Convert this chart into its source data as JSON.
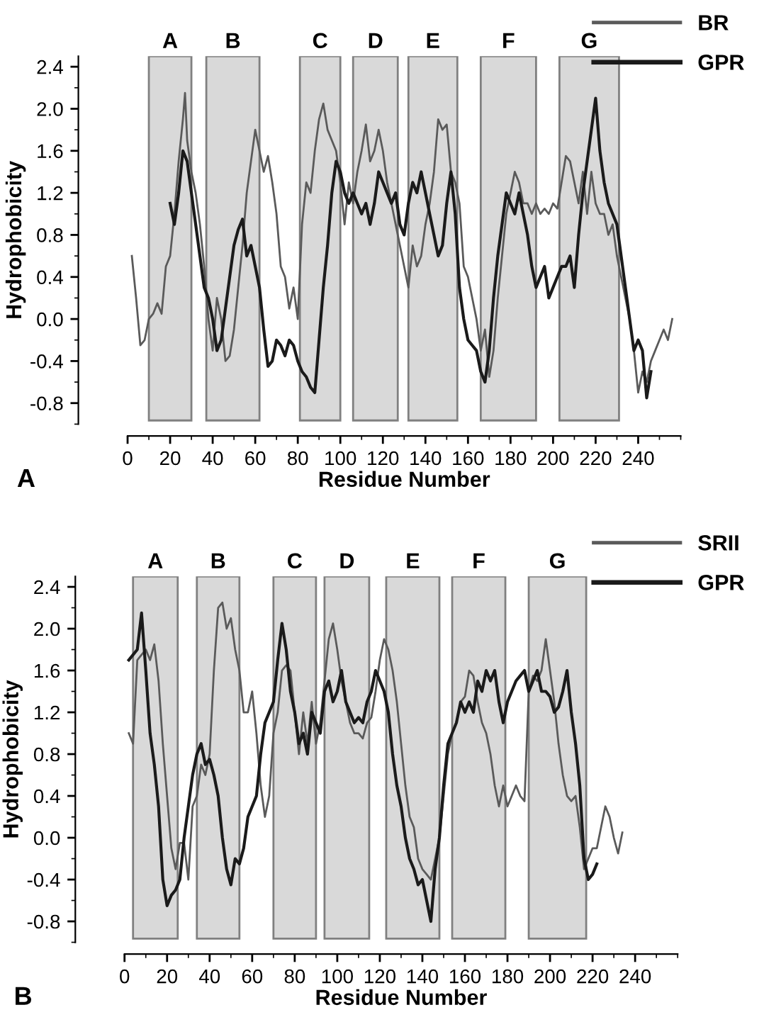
{
  "chart_data": [
    {
      "type": "line",
      "xlabel": "Residue Number",
      "ylabel": "Hydrophobicity",
      "xlim": [
        0,
        260
      ],
      "ylim": [
        -1.0,
        2.5
      ],
      "xticks": [
        0,
        20,
        40,
        60,
        80,
        100,
        120,
        140,
        160,
        180,
        200,
        220,
        240
      ],
      "yticks": [
        {
          "value": -0.8,
          "label": "-0.8"
        },
        {
          "value": -0.4,
          "label": "-0.4"
        },
        {
          "value": 0,
          "label": "0.0"
        },
        {
          "value": 0.4,
          "label": "0.4"
        },
        {
          "value": 0.8,
          "label": "0.8"
        },
        {
          "value": 1.2,
          "label": "1.2"
        },
        {
          "value": 1.6,
          "label": "1.6"
        },
        {
          "value": 2.0,
          "label": "2.0"
        },
        {
          "value": 2.4,
          "label": "2.4"
        }
      ],
      "grid": false,
      "legend": "top right",
      "annotations": [
        "A"
      ],
      "bands": [
        {
          "axis": "x",
          "from": 10,
          "to": 30,
          "label": "A",
          "color": "#d9d9d9"
        },
        {
          "axis": "x",
          "from": 37,
          "to": 62,
          "label": "B",
          "color": "#d9d9d9"
        },
        {
          "axis": "x",
          "from": 81,
          "to": 100,
          "label": "C",
          "color": "#d9d9d9"
        },
        {
          "axis": "x",
          "from": 106,
          "to": 127,
          "label": "D",
          "color": "#d9d9d9"
        },
        {
          "axis": "x",
          "from": 132,
          "to": 155,
          "label": "E",
          "color": "#d9d9d9"
        },
        {
          "axis": "x",
          "from": 166,
          "to": 192,
          "label": "F",
          "color": "#d9d9d9"
        },
        {
          "axis": "x",
          "from": 203,
          "to": 231,
          "label": "G",
          "color": "#d9d9d9"
        }
      ],
      "series": [
        {
          "name": "BR",
          "color": "#5a5a5a",
          "x": [
            2,
            4,
            6,
            8,
            10,
            12,
            14,
            16,
            18,
            20,
            22,
            24,
            26,
            27,
            28,
            30,
            32,
            34,
            36,
            38,
            40,
            42,
            44,
            46,
            48,
            50,
            52,
            54,
            56,
            58,
            60,
            62,
            64,
            66,
            68,
            70,
            72,
            74,
            76,
            78,
            80,
            82,
            84,
            86,
            88,
            90,
            92,
            94,
            96,
            98,
            100,
            102,
            104,
            106,
            108,
            110,
            112,
            114,
            116,
            118,
            120,
            122,
            124,
            126,
            128,
            130,
            132,
            134,
            136,
            138,
            140,
            142,
            144,
            146,
            148,
            150,
            152,
            154,
            156,
            158,
            160,
            162,
            164,
            166,
            168,
            170,
            172,
            174,
            176,
            178,
            180,
            182,
            184,
            186,
            188,
            190,
            192,
            194,
            196,
            198,
            200,
            202,
            204,
            206,
            208,
            210,
            212,
            214,
            216,
            218,
            220,
            222,
            224,
            226,
            228,
            230,
            232,
            234,
            236,
            238,
            240,
            242,
            244,
            246,
            248,
            250,
            252,
            254,
            256
          ],
          "values": [
            0.6,
            0.2,
            -0.25,
            -0.2,
            0.0,
            0.05,
            0.15,
            0.05,
            0.5,
            0.6,
            1.0,
            1.5,
            1.9,
            2.15,
            1.7,
            1.4,
            1.2,
            0.9,
            0.5,
            0.0,
            -0.3,
            0.2,
            0.0,
            -0.4,
            -0.35,
            -0.1,
            0.3,
            0.7,
            1.2,
            1.5,
            1.8,
            1.6,
            1.4,
            1.55,
            1.3,
            1.0,
            0.5,
            0.4,
            0.1,
            0.3,
            0.0,
            0.9,
            1.3,
            1.2,
            1.6,
            1.9,
            2.05,
            1.8,
            1.7,
            1.6,
            1.3,
            0.9,
            1.3,
            1.1,
            1.4,
            1.6,
            1.85,
            1.5,
            1.6,
            1.8,
            1.6,
            1.3,
            1.1,
            0.9,
            0.7,
            0.5,
            0.3,
            0.7,
            0.5,
            0.6,
            0.9,
            1.1,
            1.4,
            1.9,
            1.8,
            1.85,
            1.4,
            1.3,
            1.1,
            0.5,
            0.4,
            0.2,
            0.0,
            -0.3,
            -0.1,
            -0.55,
            -0.3,
            0.2,
            0.6,
            1.0,
            1.2,
            1.4,
            1.3,
            1.1,
            1.1,
            1.0,
            1.1,
            1.0,
            1.05,
            1.0,
            1.1,
            1.05,
            1.3,
            1.55,
            1.5,
            1.3,
            1.1,
            1.4,
            1.0,
            1.4,
            1.1,
            1.0,
            1.0,
            0.8,
            0.9,
            0.6,
            0.4,
            0.2,
            0.0,
            -0.3,
            -0.7,
            -0.5,
            -0.6,
            -0.4,
            -0.3,
            -0.2,
            -0.1,
            -0.2,
            0.0
          ]
        },
        {
          "name": "GPR",
          "color": "#1a1a1a",
          "x": [
            20,
            22,
            24,
            26,
            28,
            30,
            32,
            34,
            36,
            38,
            40,
            42,
            44,
            46,
            48,
            50,
            52,
            54,
            56,
            58,
            60,
            62,
            64,
            66,
            68,
            70,
            72,
            74,
            76,
            78,
            80,
            82,
            84,
            86,
            88,
            90,
            92,
            94,
            96,
            98,
            100,
            102,
            104,
            106,
            108,
            110,
            112,
            114,
            116,
            118,
            120,
            122,
            124,
            126,
            128,
            130,
            132,
            134,
            136,
            138,
            140,
            142,
            144,
            146,
            148,
            150,
            152,
            154,
            156,
            158,
            160,
            162,
            164,
            166,
            168,
            170,
            172,
            174,
            176,
            178,
            180,
            182,
            184,
            186,
            188,
            190,
            192,
            194,
            196,
            198,
            200,
            202,
            204,
            206,
            208,
            210,
            212,
            214,
            216,
            218,
            220,
            222,
            224,
            226,
            228,
            230,
            232,
            234,
            236,
            238,
            240,
            242,
            244,
            246
          ],
          "values": [
            1.1,
            0.9,
            1.2,
            1.6,
            1.5,
            1.2,
            0.9,
            0.6,
            0.3,
            0.2,
            0.0,
            -0.3,
            -0.2,
            0.1,
            0.4,
            0.7,
            0.85,
            0.95,
            0.6,
            0.7,
            0.5,
            0.3,
            -0.1,
            -0.45,
            -0.4,
            -0.2,
            -0.25,
            -0.35,
            -0.2,
            -0.25,
            -0.4,
            -0.5,
            -0.55,
            -0.65,
            -0.7,
            -0.2,
            0.3,
            0.7,
            1.2,
            1.5,
            1.4,
            1.2,
            1.1,
            1.2,
            1.1,
            1.0,
            1.1,
            0.9,
            1.1,
            1.4,
            1.3,
            1.2,
            1.1,
            1.2,
            0.9,
            0.8,
            1.1,
            1.3,
            1.2,
            1.4,
            1.2,
            1.0,
            0.8,
            0.6,
            0.7,
            1.1,
            1.4,
            1.0,
            0.3,
            0.0,
            -0.2,
            -0.25,
            -0.3,
            -0.5,
            -0.6,
            -0.3,
            0.2,
            0.6,
            0.9,
            1.2,
            1.1,
            1.0,
            1.2,
            1.0,
            0.8,
            0.5,
            0.3,
            0.4,
            0.5,
            0.2,
            0.3,
            0.4,
            0.5,
            0.5,
            0.6,
            0.3,
            0.8,
            1.2,
            1.5,
            1.8,
            2.1,
            1.6,
            1.3,
            1.1,
            1.0,
            0.9,
            0.6,
            0.3,
            0.0,
            -0.3,
            -0.2,
            -0.3,
            -0.75,
            -0.5
          ]
        }
      ]
    },
    {
      "type": "line",
      "xlabel": "Residue Number",
      "ylabel": "Hydrophobicity",
      "xlim": [
        0,
        260
      ],
      "ylim": [
        -1.0,
        2.5
      ],
      "xticks": [
        0,
        20,
        40,
        60,
        80,
        100,
        120,
        140,
        160,
        180,
        200,
        220,
        240
      ],
      "yticks": [
        {
          "value": -0.8,
          "label": "-0.8"
        },
        {
          "value": -0.4,
          "label": "-0.4"
        },
        {
          "value": 0,
          "label": "0.0"
        },
        {
          "value": 0.4,
          "label": "0.4"
        },
        {
          "value": 0.8,
          "label": "0.8"
        },
        {
          "value": 1.2,
          "label": "1.2"
        },
        {
          "value": 1.6,
          "label": "1.6"
        },
        {
          "value": 2.0,
          "label": "2.0"
        },
        {
          "value": 2.4,
          "label": "2.4"
        }
      ],
      "grid": false,
      "legend": "top right",
      "annotations": [
        "B"
      ],
      "bands": [
        {
          "axis": "x",
          "from": 4,
          "to": 25,
          "label": "A",
          "color": "#d9d9d9"
        },
        {
          "axis": "x",
          "from": 34,
          "to": 54,
          "label": "B",
          "color": "#d9d9d9"
        },
        {
          "axis": "x",
          "from": 70,
          "to": 90,
          "label": "C",
          "color": "#d9d9d9"
        },
        {
          "axis": "x",
          "from": 94,
          "to": 115,
          "label": "D",
          "color": "#d9d9d9"
        },
        {
          "axis": "x",
          "from": 123,
          "to": 148,
          "label": "E",
          "color": "#d9d9d9"
        },
        {
          "axis": "x",
          "from": 154,
          "to": 179,
          "label": "F",
          "color": "#d9d9d9"
        },
        {
          "axis": "x",
          "from": 190,
          "to": 217,
          "label": "G",
          "color": "#d9d9d9"
        }
      ],
      "series": [
        {
          "name": "SRII",
          "color": "#5a5a5a",
          "x": [
            2,
            4,
            6,
            8,
            10,
            12,
            14,
            16,
            18,
            20,
            22,
            24,
            26,
            28,
            30,
            32,
            34,
            36,
            38,
            40,
            42,
            44,
            46,
            48,
            50,
            52,
            54,
            56,
            58,
            60,
            62,
            64,
            66,
            68,
            70,
            72,
            74,
            76,
            78,
            80,
            82,
            84,
            86,
            88,
            90,
            92,
            94,
            96,
            98,
            100,
            102,
            104,
            106,
            108,
            110,
            112,
            114,
            116,
            118,
            120,
            122,
            124,
            126,
            128,
            130,
            132,
            134,
            136,
            138,
            140,
            142,
            144,
            146,
            148,
            150,
            152,
            154,
            156,
            158,
            160,
            162,
            164,
            166,
            168,
            170,
            172,
            174,
            176,
            178,
            180,
            182,
            184,
            186,
            188,
            190,
            192,
            194,
            196,
            198,
            200,
            202,
            204,
            206,
            208,
            210,
            212,
            214,
            216,
            218,
            220,
            222,
            224,
            226,
            228,
            230,
            232,
            234
          ],
          "values": [
            1.0,
            0.9,
            1.7,
            1.75,
            1.8,
            1.7,
            1.85,
            1.5,
            0.9,
            0.4,
            -0.1,
            -0.3,
            -0.05,
            -0.05,
            -0.4,
            0.3,
            0.4,
            0.7,
            0.6,
            0.8,
            1.6,
            2.2,
            2.25,
            2.0,
            2.1,
            1.8,
            1.6,
            1.2,
            1.2,
            1.4,
            1.0,
            0.5,
            0.2,
            0.4,
            1.0,
            1.2,
            1.6,
            1.65,
            1.6,
            1.2,
            0.8,
            1.2,
            0.9,
            1.3,
            0.9,
            1.1,
            1.5,
            1.9,
            2.05,
            1.8,
            1.5,
            1.3,
            1.1,
            1.0,
            1.0,
            0.95,
            1.1,
            1.15,
            1.4,
            1.7,
            1.9,
            1.8,
            1.6,
            1.3,
            0.9,
            0.5,
            0.2,
            0.1,
            -0.2,
            -0.3,
            -0.35,
            -0.4,
            -0.2,
            0.0,
            0.4,
            0.8,
            1.0,
            1.1,
            1.3,
            1.35,
            1.6,
            1.55,
            1.3,
            1.1,
            1.0,
            0.8,
            0.5,
            0.3,
            0.5,
            0.3,
            0.4,
            0.5,
            0.4,
            0.35,
            1.4,
            1.55,
            1.5,
            1.6,
            1.9,
            1.6,
            1.3,
            0.9,
            0.6,
            0.4,
            0.35,
            0.4,
            0.1,
            -0.3,
            -0.2,
            -0.1,
            -0.1,
            0.1,
            0.3,
            0.2,
            0.0,
            -0.15,
            0.05
          ]
        },
        {
          "name": "GPR",
          "color": "#1a1a1a",
          "x": [
            2,
            4,
            6,
            8,
            10,
            12,
            14,
            16,
            18,
            20,
            22,
            24,
            26,
            28,
            30,
            32,
            34,
            36,
            38,
            40,
            42,
            44,
            46,
            48,
            50,
            52,
            54,
            56,
            58,
            60,
            62,
            64,
            66,
            68,
            70,
            72,
            74,
            76,
            78,
            80,
            82,
            84,
            86,
            88,
            90,
            92,
            94,
            96,
            98,
            100,
            102,
            104,
            106,
            108,
            110,
            112,
            114,
            116,
            118,
            120,
            122,
            124,
            126,
            128,
            130,
            132,
            134,
            136,
            138,
            140,
            142,
            144,
            146,
            148,
            150,
            152,
            154,
            156,
            158,
            160,
            162,
            164,
            166,
            168,
            170,
            172,
            174,
            176,
            178,
            180,
            182,
            184,
            186,
            188,
            190,
            192,
            194,
            196,
            198,
            200,
            202,
            204,
            206,
            208,
            210,
            212,
            214,
            216,
            218,
            220,
            222
          ],
          "values": [
            1.7,
            1.75,
            1.8,
            2.15,
            1.6,
            1.0,
            0.7,
            0.3,
            -0.4,
            -0.65,
            -0.55,
            -0.5,
            -0.4,
            0.0,
            0.3,
            0.6,
            0.8,
            0.9,
            0.7,
            0.75,
            0.6,
            0.4,
            0.0,
            -0.3,
            -0.45,
            -0.2,
            -0.25,
            -0.1,
            0.2,
            0.3,
            0.4,
            0.8,
            1.1,
            1.2,
            1.3,
            1.7,
            2.05,
            1.8,
            1.4,
            1.2,
            0.9,
            1.0,
            0.8,
            1.2,
            1.1,
            1.0,
            1.4,
            1.5,
            1.3,
            1.4,
            1.6,
            1.3,
            1.2,
            1.1,
            1.15,
            1.1,
            1.3,
            1.4,
            1.6,
            1.5,
            1.4,
            1.2,
            0.8,
            0.5,
            0.3,
            0.0,
            -0.2,
            -0.3,
            -0.45,
            -0.4,
            -0.6,
            -0.8,
            -0.3,
            0.0,
            0.5,
            0.9,
            1.0,
            1.1,
            1.3,
            1.2,
            1.3,
            1.2,
            1.5,
            1.4,
            1.6,
            1.5,
            1.6,
            1.3,
            1.1,
            1.3,
            1.4,
            1.5,
            1.55,
            1.6,
            1.4,
            1.5,
            1.6,
            1.4,
            1.4,
            1.35,
            1.2,
            1.25,
            1.4,
            1.6,
            1.2,
            0.9,
            0.5,
            -0.2,
            -0.4,
            -0.35,
            -0.25
          ]
        }
      ]
    }
  ]
}
